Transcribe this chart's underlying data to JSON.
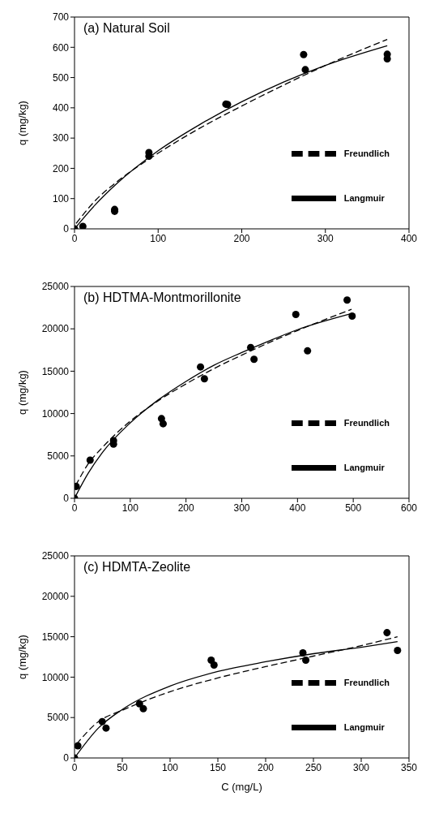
{
  "chart_data": [
    {
      "type": "scatter",
      "title": "(a) Natural Soil",
      "ylabel": "q (mg/kg)",
      "xlim": [
        0,
        400
      ],
      "xticks": [
        0,
        100,
        200,
        300,
        400
      ],
      "ylim": [
        0,
        700
      ],
      "yticks": [
        0,
        100,
        200,
        300,
        400,
        500,
        600,
        700
      ],
      "grid": false,
      "legend": "bottom right",
      "series": [
        {
          "color": "#000000",
          "marker": "circle",
          "x": [
            0,
            10,
            48,
            48,
            89,
            89,
            181,
            183,
            274,
            276,
            374,
            374
          ],
          "values": [
            0,
            8,
            64,
            58,
            252,
            240,
            412,
            411,
            576,
            526,
            577,
            562
          ]
        },
        {
          "type": "line",
          "name": "Langmuir",
          "color": "#000000",
          "marker": "none",
          "line_style": "solid",
          "x": [
            0,
            25,
            50,
            100,
            150,
            200,
            250,
            300,
            374
          ],
          "values": [
            0,
            80,
            148,
            258,
            345,
            420,
            485,
            540,
            605
          ]
        },
        {
          "type": "line",
          "name": "Freundlich",
          "color": "#000000",
          "marker": "none",
          "line_style": "dashed",
          "x": [
            2,
            25,
            50,
            100,
            150,
            200,
            250,
            300,
            374
          ],
          "values": [
            18,
            94,
            154,
            250,
            333,
            406,
            475,
            540,
            626
          ]
        }
      ]
    },
    {
      "type": "scatter",
      "title": "(b) HDTMA-Montmorillonite",
      "ylabel": "q (mg/kg)",
      "xlim": [
        0,
        600
      ],
      "xticks": [
        0,
        100,
        200,
        300,
        400,
        500,
        600
      ],
      "ylim": [
        0,
        25000
      ],
      "yticks": [
        0,
        5000,
        10000,
        15000,
        20000,
        25000
      ],
      "grid": false,
      "legend": "bottom right",
      "series": [
        {
          "color": "#000000",
          "marker": "circle",
          "x": [
            0,
            3,
            28,
            70,
            70,
            156,
            159,
            226,
            233,
            316,
            322,
            397,
            418,
            489,
            498
          ],
          "values": [
            0,
            1400,
            4500,
            6800,
            6400,
            9400,
            8800,
            15500,
            14100,
            17800,
            16400,
            21700,
            17400,
            23400,
            21500
          ]
        },
        {
          "type": "line",
          "name": "Langmuir",
          "color": "#000000",
          "marker": "none",
          "line_style": "solid",
          "x": [
            0,
            25,
            50,
            100,
            150,
            200,
            250,
            300,
            350,
            400,
            497
          ],
          "values": [
            0,
            3000,
            5400,
            8900,
            11600,
            13800,
            15700,
            17200,
            18600,
            19900,
            21800
          ]
        },
        {
          "type": "line",
          "name": "Freundlich",
          "color": "#000000",
          "marker": "none",
          "line_style": "dashed",
          "x": [
            2,
            25,
            50,
            100,
            150,
            200,
            250,
            300,
            350,
            400,
            497
          ],
          "values": [
            1500,
            4100,
            6000,
            9100,
            11500,
            13500,
            15300,
            16900,
            18400,
            19800,
            22300
          ]
        }
      ]
    },
    {
      "type": "scatter",
      "title": "(c) HDMTA-Zeolite",
      "xlabel": "C (mg/L)",
      "ylabel": "q (mg/kg)",
      "xlim": [
        0,
        350
      ],
      "xticks": [
        0,
        50,
        100,
        150,
        200,
        250,
        300,
        350
      ],
      "ylim": [
        0,
        25000
      ],
      "yticks": [
        0,
        5000,
        10000,
        15000,
        20000,
        25000
      ],
      "grid": false,
      "legend": "bottom right",
      "series": [
        {
          "color": "#000000",
          "marker": "circle",
          "x": [
            0,
            3.5,
            29,
            33,
            68,
            72,
            143,
            146,
            239,
            242,
            327,
            338
          ],
          "values": [
            0,
            1500,
            4500,
            3700,
            6700,
            6100,
            12100,
            11500,
            13000,
            12100,
            15500,
            13300
          ]
        },
        {
          "type": "line",
          "name": "Langmuir",
          "color": "#000000",
          "marker": "none",
          "line_style": "solid",
          "x": [
            0,
            25,
            50,
            100,
            150,
            200,
            250,
            300,
            338
          ],
          "values": [
            0,
            3700,
            6000,
            8900,
            10700,
            11900,
            12900,
            13700,
            14400
          ]
        },
        {
          "type": "line",
          "name": "Freundlich",
          "color": "#000000",
          "marker": "none",
          "line_style": "dashed",
          "x": [
            2,
            25,
            50,
            100,
            150,
            200,
            250,
            300,
            338
          ],
          "values": [
            1700,
            4500,
            5900,
            8200,
            9900,
            11300,
            12600,
            13900,
            15000
          ]
        }
      ]
    }
  ]
}
